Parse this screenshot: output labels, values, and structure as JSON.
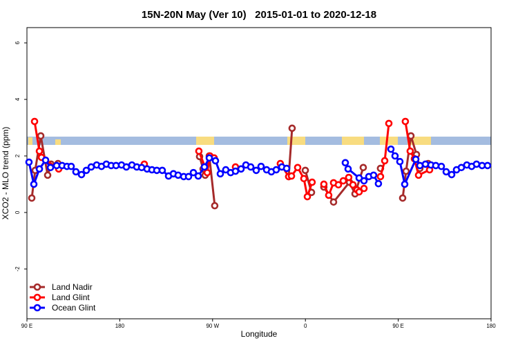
{
  "chart_data": {
    "type": "line",
    "title": "15N-20N May (Ver 10)   2015-01-01 to 2020-12-18",
    "xlabel": "Longitude",
    "ylabel": "XCO2 - MLO trend (ppm)",
    "xlim": [
      90,
      540
    ],
    "xticks": [
      {
        "value": 90,
        "label": "90 E"
      },
      {
        "value": 180,
        "label": "180"
      },
      {
        "value": 270,
        "label": "90 W"
      },
      {
        "value": 360,
        "label": "0"
      },
      {
        "value": 450,
        "label": "90 E"
      },
      {
        "value": 540,
        "label": "180"
      }
    ],
    "ylim": [
      -3.76,
      6.54
    ],
    "yticks": [
      -2,
      0,
      2,
      4,
      6
    ],
    "legend": "bottom-left",
    "series": [
      {
        "name": "Land Nadir",
        "color": "#a52a2a",
        "x": [
          94.7,
          98.0,
          103.4,
          110.1,
          113.4,
          120.1,
          null,
          257.4,
          260.8,
          262.8,
          266.8,
          272.1,
          null,
          343.8,
          347.1,
          null,
          359.9,
          365.9,
          null,
          377.9,
          387.3,
          402.7,
          408.1,
          416.1,
          null,
          432.8,
          null,
          454.3,
          457.6,
          462.3,
          467.7,
          471.0,
          479.0
        ],
        "values": [
          0.51,
          1.49,
          2.71,
          1.32,
          1.71,
          1.73,
          null,
          1.98,
          1.54,
          1.32,
          2.0,
          0.24,
          null,
          1.27,
          2.98,
          null,
          1.49,
          0.71,
          null,
          0.9,
          0.37,
          1.07,
          0.66,
          1.59,
          null,
          1.56,
          null,
          0.51,
          1.46,
          2.71,
          2.05,
          1.56,
          1.73
        ]
      },
      {
        "name": "Land Glint",
        "color": "#ff0000",
        "x": [
          97.4,
          102.1,
          104.1,
          120.8,
          null,
          203.8,
          null,
          256.7,
          264.8,
          267.4,
          271.5,
          null,
          292.2,
          null,
          335.7,
          343.8,
          346.5,
          352.5,
          358.5,
          361.9,
          366.5,
          null,
          377.9,
          382.6,
          387.3,
          392.0,
          396.7,
          402.0,
          406.1,
          410.1,
          412.1,
          416.8,
          null,
          432.8,
          436.9,
          440.9,
          null,
          456.9,
          461.6,
          465.7,
          469.7,
          480.4
        ],
        "values": [
          3.22,
          2.17,
          1.95,
          1.54,
          null,
          1.71,
          null,
          2.17,
          1.41,
          2.0,
          1.93,
          null,
          1.61,
          null,
          1.73,
          1.27,
          1.29,
          1.59,
          1.2,
          0.56,
          1.07,
          null,
          1.0,
          0.61,
          1.05,
          0.98,
          1.12,
          1.24,
          0.98,
          0.8,
          0.73,
          0.85,
          null,
          1.27,
          1.83,
          3.15,
          null,
          3.22,
          2.17,
          1.9,
          1.32,
          1.51
        ]
      },
      {
        "name": "Ocean Glint",
        "color": "#0000ff",
        "x": [
          92.0,
          96.7,
          102.1,
          108.1,
          112.8,
          118.8,
          124.1,
          128.8,
          132.9,
          137.5,
          142.9,
          147.6,
          152.3,
          157.6,
          162.3,
          167.0,
          171.7,
          176.4,
          181.7,
          186.4,
          191.8,
          196.5,
          201.2,
          206.5,
          211.2,
          215.9,
          221.2,
          227.3,
          232.0,
          236.6,
          242.0,
          246.7,
          251.4,
          256.1,
          262.1,
          266.8,
          272.8,
          277.5,
          282.8,
          287.5,
          292.2,
          297.6,
          302.3,
          307.0,
          312.3,
          317.0,
          322.4,
          327.0,
          331.7,
          337.1,
          341.8,
          null,
          398.7,
          401.4,
          412.1,
          416.8,
          421.5,
          426.1,
          430.8,
          null,
          442.9,
          446.9,
          451.6,
          456.3,
          467.0,
          471.0,
          476.4,
          481.7,
          486.4,
          491.8,
          496.5,
          501.8,
          506.5,
          511.2,
          516.5,
          521.2,
          525.9,
          531.3,
          536.6
        ],
        "values": [
          1.78,
          1.0,
          1.54,
          1.85,
          1.59,
          1.66,
          1.66,
          1.63,
          1.63,
          1.44,
          1.34,
          1.49,
          1.61,
          1.68,
          1.63,
          1.71,
          1.66,
          1.66,
          1.68,
          1.61,
          1.68,
          1.61,
          1.59,
          1.54,
          1.51,
          1.49,
          1.49,
          1.29,
          1.37,
          1.32,
          1.27,
          1.27,
          1.41,
          1.29,
          1.61,
          1.93,
          1.83,
          1.37,
          1.51,
          1.41,
          1.46,
          1.54,
          1.68,
          1.61,
          1.49,
          1.63,
          1.51,
          1.44,
          1.51,
          1.61,
          1.56,
          null,
          1.76,
          1.54,
          1.22,
          1.12,
          1.27,
          1.32,
          1.02,
          null,
          2.24,
          2.0,
          1.8,
          1.0,
          1.88,
          1.66,
          1.71,
          1.68,
          1.66,
          1.63,
          1.44,
          1.34,
          1.51,
          1.59,
          1.68,
          1.63,
          1.71,
          1.66,
          1.66
        ]
      }
    ]
  }
}
